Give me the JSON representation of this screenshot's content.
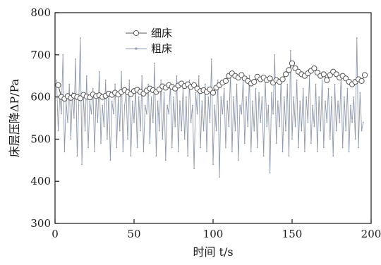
{
  "chart_data": {
    "type": "line",
    "xlabel": "时间 t/s",
    "ylabel": "床层压降ΔP/Pa",
    "xlim": [
      0,
      200
    ],
    "ylim": [
      300,
      800
    ],
    "xticks": [
      0,
      50,
      100,
      150,
      200
    ],
    "yticks": [
      300,
      400,
      500,
      600,
      700,
      800
    ],
    "grid": false,
    "legend_position": "top-left",
    "series": [
      {
        "name": "细床",
        "color": "#555555",
        "marker": "open-circle",
        "x": [
          2,
          4,
          6,
          8,
          10,
          12,
          14,
          16,
          18,
          20,
          22,
          24,
          26,
          28,
          30,
          32,
          34,
          36,
          38,
          40,
          42,
          44,
          46,
          48,
          50,
          52,
          54,
          56,
          58,
          60,
          62,
          64,
          66,
          68,
          70,
          72,
          74,
          76,
          78,
          80,
          82,
          84,
          86,
          88,
          90,
          92,
          94,
          96,
          98,
          100,
          102,
          104,
          106,
          108,
          110,
          112,
          114,
          116,
          118,
          120,
          122,
          124,
          126,
          128,
          130,
          132,
          134,
          136,
          138,
          140,
          142,
          144,
          146,
          148,
          150,
          152,
          154,
          156,
          158,
          160,
          162,
          164,
          166,
          168,
          170,
          172,
          174,
          176,
          178,
          180,
          182,
          184,
          186,
          188,
          190,
          192,
          194,
          196
        ],
        "y": [
          628,
          600,
          596,
          602,
          598,
          603,
          600,
          597,
          605,
          601,
          599,
          606,
          602,
          604,
          600,
          603,
          608,
          605,
          610,
          606,
          612,
          616,
          611,
          607,
          614,
          617,
          612,
          608,
          615,
          620,
          616,
          612,
          618,
          625,
          622,
          628,
          624,
          620,
          627,
          632,
          626,
          630,
          624,
          628,
          620,
          614,
          616,
          612,
          618,
          610,
          622,
          628,
          634,
          638,
          650,
          656,
          650,
          646,
          652,
          644,
          638,
          632,
          636,
          648,
          642,
          646,
          640,
          644,
          634,
          640,
          636,
          642,
          654,
          664,
          680,
          668,
          660,
          654,
          650,
          656,
          662,
          668,
          658,
          650,
          654,
          640,
          652,
          660,
          654,
          646,
          650,
          644,
          636,
          630,
          636,
          642,
          638,
          652
        ]
      },
      {
        "name": "粗床",
        "color": "#8f99ad",
        "marker": "dot",
        "x": [
          1,
          2,
          3,
          4,
          5,
          6,
          7,
          8,
          9,
          10,
          11,
          12,
          13,
          14,
          15,
          16,
          17,
          18,
          19,
          20,
          21,
          22,
          23,
          24,
          25,
          26,
          27,
          28,
          29,
          30,
          31,
          32,
          33,
          34,
          35,
          36,
          37,
          38,
          39,
          40,
          41,
          42,
          43,
          44,
          45,
          46,
          47,
          48,
          49,
          50,
          51,
          52,
          53,
          54,
          55,
          56,
          57,
          58,
          59,
          60,
          61,
          62,
          63,
          64,
          65,
          66,
          67,
          68,
          69,
          70,
          71,
          72,
          73,
          74,
          75,
          76,
          77,
          78,
          79,
          80,
          81,
          82,
          83,
          84,
          85,
          86,
          87,
          88,
          89,
          90,
          91,
          92,
          93,
          94,
          95,
          96,
          97,
          98,
          99,
          100,
          101,
          102,
          103,
          104,
          105,
          106,
          107,
          108,
          109,
          110,
          111,
          112,
          113,
          114,
          115,
          116,
          117,
          118,
          119,
          120,
          121,
          122,
          123,
          124,
          125,
          126,
          127,
          128,
          129,
          130,
          131,
          132,
          133,
          134,
          135,
          136,
          137,
          138,
          139,
          140,
          141,
          142,
          143,
          144,
          145,
          146,
          147,
          148,
          149,
          150,
          151,
          152,
          153,
          154,
          155,
          156,
          157,
          158,
          159,
          160,
          161,
          162,
          163,
          164,
          165,
          166,
          167,
          168,
          169,
          170,
          171,
          172,
          173,
          174,
          175,
          176,
          177,
          178,
          179,
          180,
          181,
          182,
          183,
          184,
          185,
          186,
          187,
          188,
          189,
          190,
          191,
          192,
          193,
          194,
          195
        ],
        "y": [
          640,
          520,
          600,
          560,
          700,
          470,
          590,
          540,
          630,
          500,
          610,
          550,
          690,
          460,
          580,
          740,
          440,
          600,
          520,
          650,
          480,
          590,
          560,
          620,
          470,
          600,
          540,
          660,
          490,
          580,
          530,
          640,
          500,
          610,
          450,
          590,
          560,
          630,
          480,
          600,
          520,
          660,
          470,
          580,
          610,
          500,
          640,
          460,
          590,
          540,
          620,
          480,
          600,
          520,
          650,
          470,
          580,
          560,
          630,
          490,
          600,
          540,
          680,
          460,
          590,
          520,
          640,
          500,
          610,
          450,
          580,
          560,
          630,
          480,
          600,
          530,
          650,
          470,
          590,
          520,
          620,
          500,
          600,
          460,
          640,
          540,
          580,
          430,
          610,
          560,
          650,
          480,
          590,
          520,
          630,
          470,
          600,
          540,
          690,
          440,
          580,
          520,
          640,
          410,
          600,
          560,
          620,
          480,
          590,
          530,
          660,
          470,
          600,
          520,
          630,
          450,
          580,
          560,
          640,
          490,
          600,
          530,
          650,
          470,
          590,
          520,
          620,
          480,
          610,
          540,
          600,
          460,
          640,
          530,
          580,
          420,
          610,
          560,
          700,
          490,
          590,
          530,
          640,
          470,
          600,
          520,
          630,
          460,
          710,
          500,
          600,
          530,
          640,
          480,
          590,
          520,
          620,
          470,
          600,
          540,
          650,
          490,
          580,
          530,
          630,
          470,
          600,
          520,
          640,
          480,
          590,
          540,
          620,
          500,
          600,
          460,
          630,
          520,
          590,
          540,
          650,
          480,
          600,
          520,
          620,
          470,
          580,
          540,
          600,
          500,
          740,
          480,
          610,
          520,
          540
        ]
      }
    ]
  }
}
